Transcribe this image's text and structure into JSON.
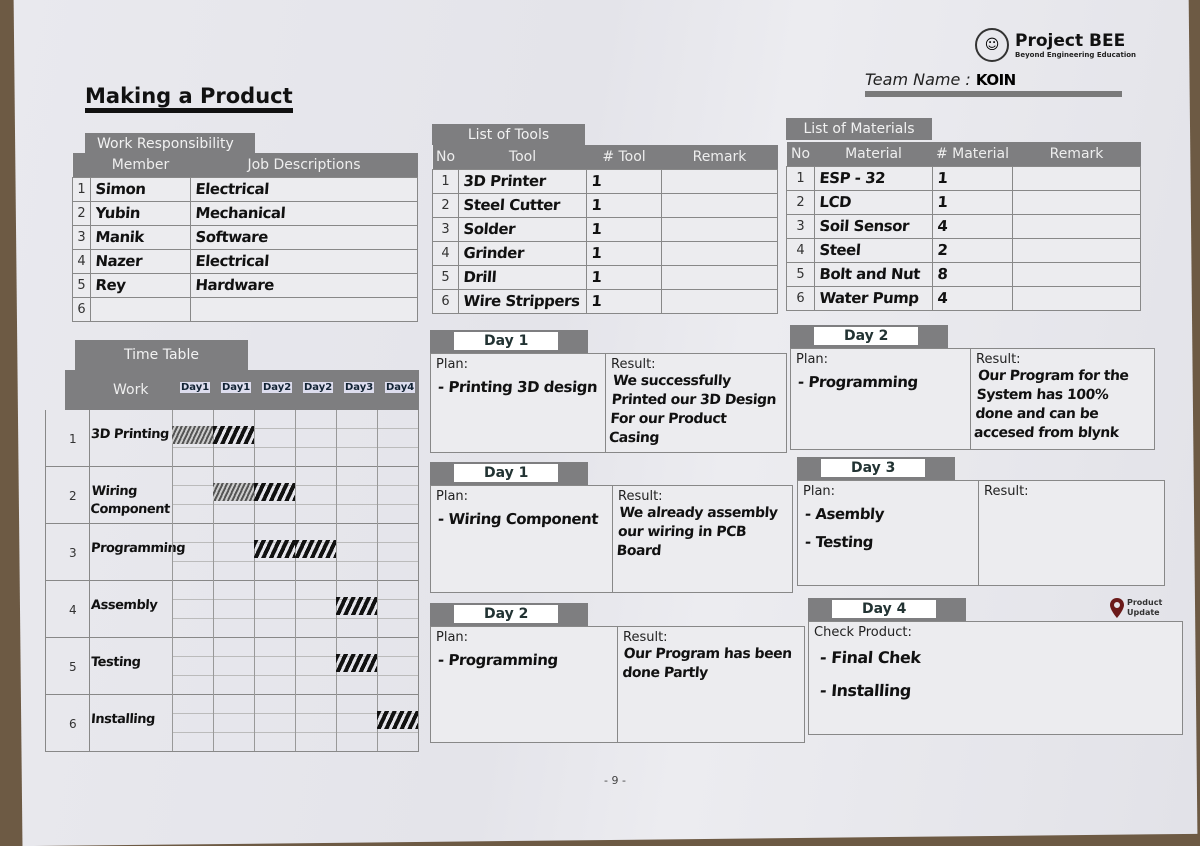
{
  "title": "Making a Product",
  "logo": {
    "name": "Project BEE",
    "tagline": "Beyond Engineering Education"
  },
  "team": {
    "label": "Team Name :",
    "value": "KOIN"
  },
  "work_responsibility": {
    "title": "Work Responsibility",
    "headers": [
      "Member",
      "Job Descriptions"
    ],
    "rows": [
      {
        "no": "1",
        "member": "Simon",
        "job": "Electrical"
      },
      {
        "no": "2",
        "member": "Yubin",
        "job": "Mechanical"
      },
      {
        "no": "3",
        "member": "Manik",
        "job": "Software"
      },
      {
        "no": "4",
        "member": "Nazer",
        "job": "Electrical"
      },
      {
        "no": "5",
        "member": "Rey",
        "job": "Hardware"
      },
      {
        "no": "6",
        "member": "",
        "job": ""
      }
    ]
  },
  "tools": {
    "title": "List of Tools",
    "headers": [
      "No",
      "Tool",
      "# Tool",
      "Remark"
    ],
    "rows": [
      {
        "no": "1",
        "name": "3D Printer",
        "qty": "1",
        "remark": ""
      },
      {
        "no": "2",
        "name": "Steel Cutter",
        "qty": "1",
        "remark": ""
      },
      {
        "no": "3",
        "name": "Solder",
        "qty": "1",
        "remark": ""
      },
      {
        "no": "4",
        "name": "Grinder",
        "qty": "1",
        "remark": ""
      },
      {
        "no": "5",
        "name": "Drill",
        "qty": "1",
        "remark": ""
      },
      {
        "no": "6",
        "name": "Wire Strippers",
        "qty": "1",
        "remark": ""
      }
    ]
  },
  "materials": {
    "title": "List of Materials",
    "headers": [
      "No",
      "Material",
      "# Material",
      "Remark"
    ],
    "rows": [
      {
        "no": "1",
        "name": "ESP - 32",
        "qty": "1",
        "remark": ""
      },
      {
        "no": "2",
        "name": "LCD",
        "qty": "1",
        "remark": ""
      },
      {
        "no": "3",
        "name": "Soil Sensor",
        "qty": "4",
        "remark": ""
      },
      {
        "no": "4",
        "name": "Steel",
        "qty": "2",
        "remark": ""
      },
      {
        "no": "5",
        "name": "Bolt and Nut",
        "qty": "8",
        "remark": ""
      },
      {
        "no": "6",
        "name": "Water Pump",
        "qty": "4",
        "remark": ""
      }
    ]
  },
  "timetable": {
    "title": "Time Table",
    "work_header": "Work",
    "days": [
      "Day1",
      "Day1",
      "Day2",
      "Day2",
      "Day3",
      "Day4"
    ],
    "tasks": [
      {
        "no": "1",
        "name": "3D Printing",
        "light": [
          0
        ],
        "dark": [
          1
        ]
      },
      {
        "no": "2",
        "name": "Wiring Component",
        "light": [
          1
        ],
        "dark": [
          2
        ]
      },
      {
        "no": "3",
        "name": "Programming",
        "light": [],
        "dark": [
          2,
          3
        ]
      },
      {
        "no": "4",
        "name": "Assembly",
        "light": [],
        "dark": [
          4
        ]
      },
      {
        "no": "5",
        "name": "Testing",
        "light": [],
        "dark": [
          4
        ]
      },
      {
        "no": "6",
        "name": "Installing",
        "light": [],
        "dark": [
          5
        ]
      }
    ]
  },
  "labels": {
    "plan": "Plan:",
    "result": "Result:",
    "check": "Check Product:"
  },
  "days": [
    {
      "day": "Day 1",
      "plan": [
        "- Printing 3D design"
      ],
      "result": "We successfully Printed our 3D Design For our Product Casing"
    },
    {
      "day": "Day 1",
      "plan": [
        "- Wiring Component"
      ],
      "result": "We already assembly our wiring in PCB Board"
    },
    {
      "day": "Day 2",
      "plan": [
        "- Programming"
      ],
      "result": "Our Program has been done Partly"
    },
    {
      "day": "Day 2",
      "plan": [
        "- Programming"
      ],
      "result": "Our Program for the System has 100% done and can be accesed from blynk"
    },
    {
      "day": "Day 3",
      "plan": [
        "- Asembly",
        "- Testing"
      ],
      "result": ""
    },
    {
      "day": "Day 4",
      "check": [
        "- Final Chek",
        "- Installing"
      ]
    }
  ],
  "product_update": {
    "label_1": "Product",
    "label_2": "Update",
    "icon": "map-pin-icon",
    "color": "#6b1a1a"
  },
  "page_number": "- 9 -"
}
